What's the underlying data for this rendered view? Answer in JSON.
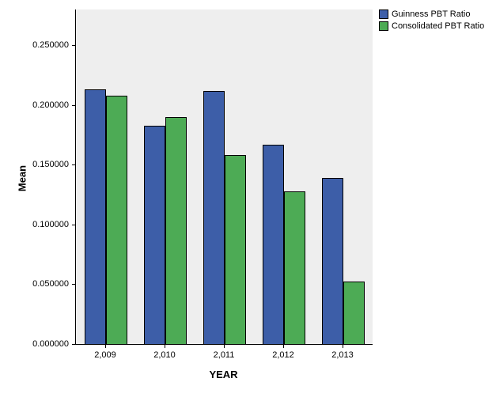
{
  "chart_data": {
    "type": "bar",
    "categories": [
      "2,009",
      "2,010",
      "2,011",
      "2,012",
      "2,013"
    ],
    "series": [
      {
        "name": "Guinness PBT Ratio",
        "color": "#3d5ea8",
        "values": [
          0.213,
          0.183,
          0.212,
          0.167,
          0.139
        ]
      },
      {
        "name": "Consolidated PBT Ratio",
        "color": "#4dab55",
        "values": [
          0.208,
          0.19,
          0.158,
          0.128,
          0.052
        ]
      }
    ],
    "title": "",
    "xlabel": "YEAR",
    "ylabel": "Mean",
    "ylim": [
      0,
      0.28
    ],
    "yticks": [
      "0.000000",
      "0.050000",
      "0.100000",
      "0.150000",
      "0.200000",
      "0.250000"
    ],
    "ytick_values": [
      0,
      0.05,
      0.1,
      0.15,
      0.2,
      0.25
    ],
    "grid": false,
    "legend_position": "top-right",
    "plot_background": "#eeeeee",
    "bar_outline_color": "#000000"
  }
}
